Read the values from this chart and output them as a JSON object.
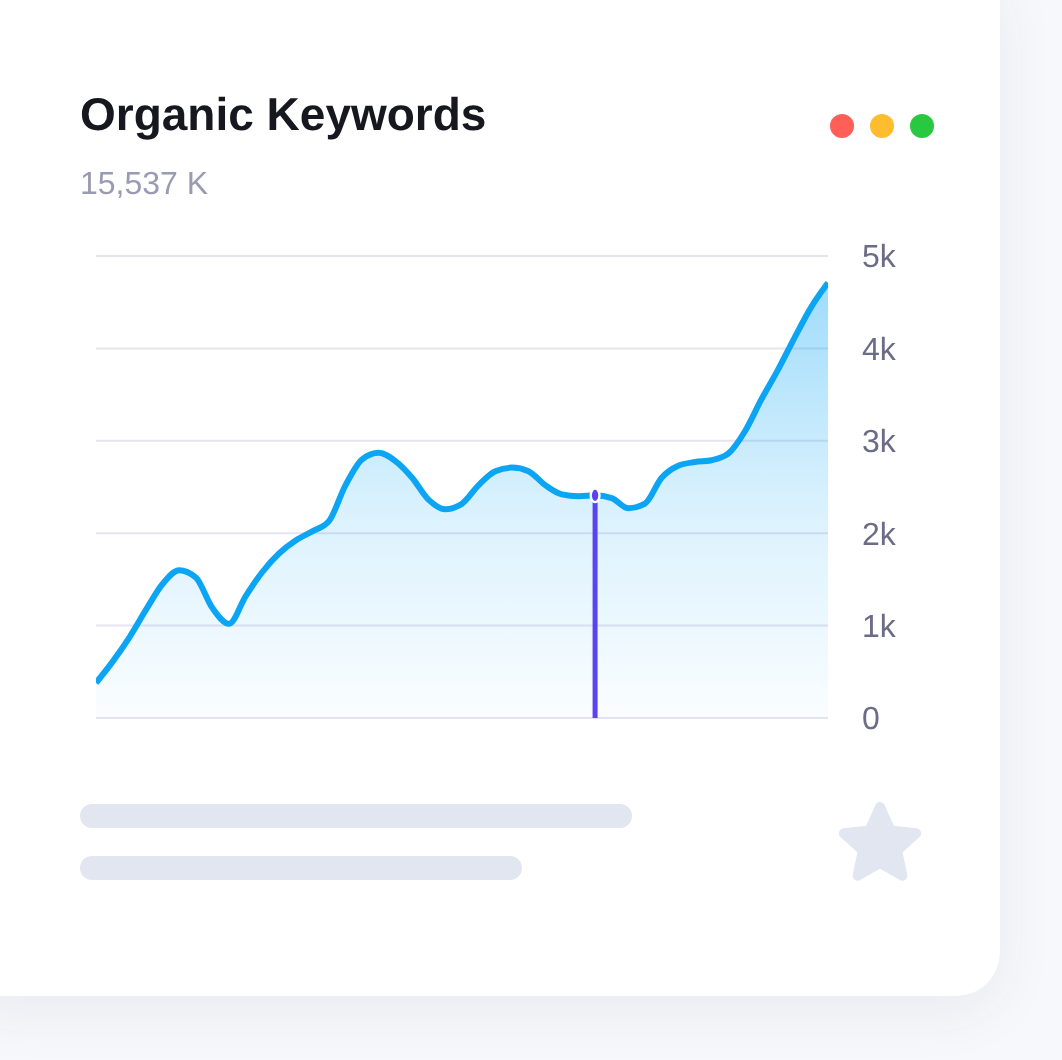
{
  "chart_data": {
    "type": "area",
    "title": "Organic Keywords",
    "subtitle": "15,537 K",
    "categories": [
      null,
      null,
      null,
      null,
      null,
      null,
      null,
      null,
      null,
      null,
      null,
      null,
      null,
      null,
      null,
      null,
      null,
      null,
      null,
      null,
      null,
      null,
      null,
      null,
      null,
      null,
      null,
      null,
      null,
      null,
      null,
      null,
      null,
      null,
      null,
      null,
      null,
      null,
      null,
      null,
      null,
      null,
      null,
      null,
      null
    ],
    "series": [
      {
        "color": "#0ba5f4",
        "values": [
          380,
          610,
          870,
          1170,
          1450,
          1600,
          1520,
          1190,
          1020,
          1320,
          1580,
          1780,
          1920,
          2020,
          2130,
          2520,
          2800,
          2870,
          2780,
          2600,
          2360,
          2260,
          2320,
          2520,
          2670,
          2710,
          2670,
          2520,
          2420,
          2400,
          2410,
          2380,
          2270,
          2320,
          2600,
          2730,
          2770,
          2790,
          2860,
          3100,
          3450,
          3770,
          4120,
          4450,
          4710
        ]
      },
      {
        "type": "lollipop",
        "color": "#5a43f0",
        "values": [
          null,
          null,
          null,
          null,
          null,
          null,
          null,
          null,
          null,
          null,
          null,
          null,
          null,
          null,
          null,
          null,
          null,
          null,
          null,
          null,
          null,
          null,
          null,
          null,
          null,
          null,
          null,
          null,
          null,
          null,
          2410,
          null,
          null,
          null,
          null,
          null,
          null,
          null,
          null,
          null,
          null,
          null,
          null,
          null,
          null
        ]
      }
    ],
    "ylim": [
      0,
      5000
    ],
    "yticks": [
      0,
      {
        "value": 1000,
        "label": "1k"
      },
      {
        "value": 2000,
        "label": "2k"
      },
      {
        "value": 3000,
        "label": "3k"
      },
      {
        "value": 4000,
        "label": "4k"
      },
      {
        "value": 5000,
        "label": "5k"
      }
    ],
    "grid": "y",
    "tick_labels": "y"
  }
}
